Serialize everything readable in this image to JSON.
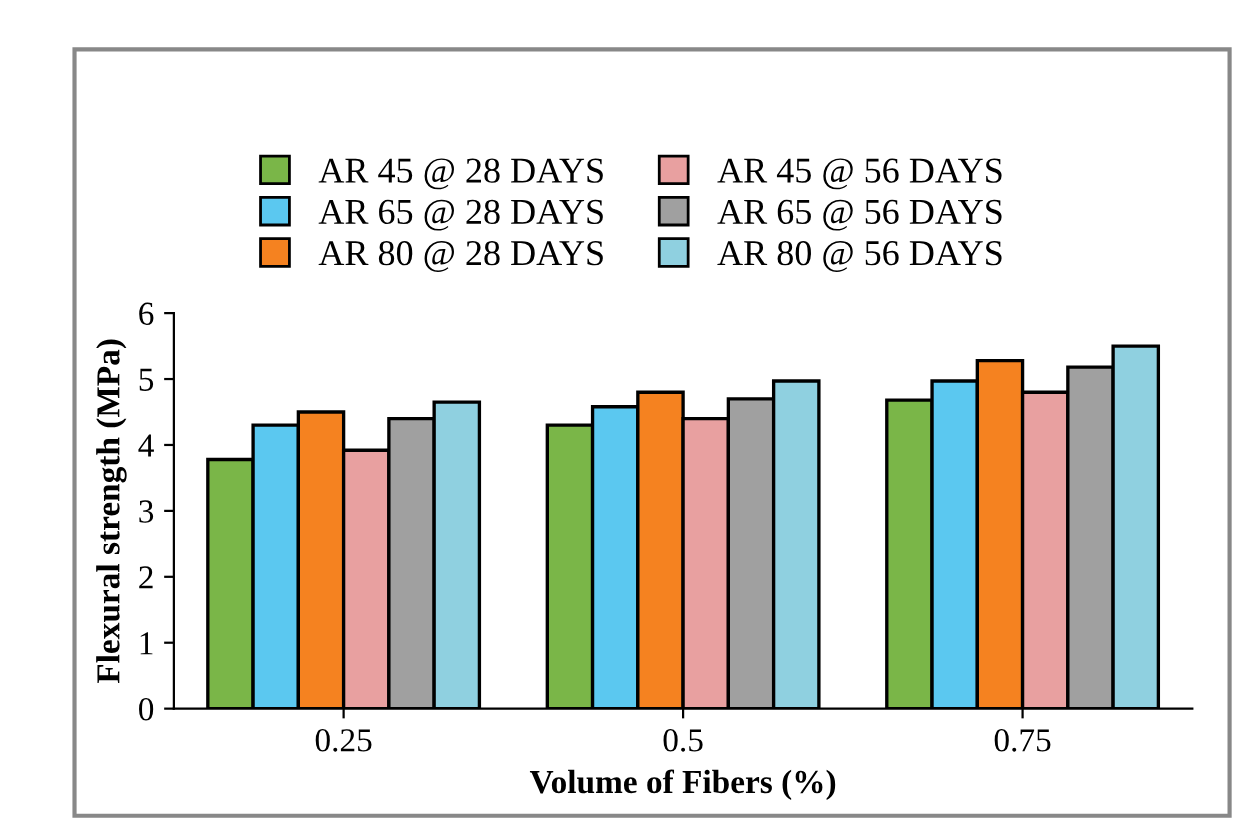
{
  "chart_data": {
    "type": "bar",
    "xlabel": "Volume of Fibers (%)",
    "ylabel": "Flexural strength (MPa)",
    "categories": [
      "0.25",
      "0.5",
      "0.75"
    ],
    "series": [
      {
        "name": "AR 45 @ 28 DAYS",
        "color": "#7ab648",
        "values": [
          3.78,
          4.3,
          4.68
        ]
      },
      {
        "name": "AR 65 @ 28 DAYS",
        "color": "#5bc8f0",
        "values": [
          4.3,
          4.58,
          4.97
        ]
      },
      {
        "name": "AR 80 @ 28 DAYS",
        "color": "#f58220",
        "values": [
          4.5,
          4.8,
          5.28
        ]
      },
      {
        "name": "AR 45 @ 56 DAYS",
        "color": "#e8a0a0",
        "values": [
          3.92,
          4.4,
          4.8
        ]
      },
      {
        "name": "AR 65 @ 56 DAYS",
        "color": "#a0a0a0",
        "values": [
          4.4,
          4.7,
          5.18
        ]
      },
      {
        "name": "AR 80 @ 56 DAYS",
        "color": "#8fd0e0",
        "values": [
          4.65,
          4.97,
          5.5
        ]
      }
    ],
    "ylim": [
      0,
      6
    ],
    "yticks": [
      0,
      1,
      2,
      3,
      4,
      5,
      6
    ],
    "grid": false,
    "legend": "top"
  }
}
